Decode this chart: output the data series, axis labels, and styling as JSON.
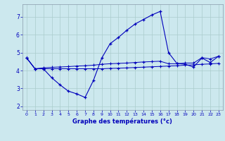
{
  "xlabel": "Graphe des températures (°c)",
  "xlim": [
    -0.5,
    23.5
  ],
  "ylim": [
    1.8,
    7.7
  ],
  "yticks": [
    2,
    3,
    4,
    5,
    6,
    7
  ],
  "xticks": [
    0,
    1,
    2,
    3,
    4,
    5,
    6,
    7,
    8,
    9,
    10,
    11,
    12,
    13,
    14,
    15,
    16,
    17,
    18,
    19,
    20,
    21,
    22,
    23
  ],
  "background_color": "#cce8ee",
  "grid_color": "#aacccc",
  "line_color": "#0000bb",
  "hours": [
    0,
    1,
    2,
    3,
    4,
    5,
    6,
    7,
    8,
    9,
    10,
    11,
    12,
    13,
    14,
    15,
    16,
    17,
    18,
    19,
    20,
    21,
    22,
    23
  ],
  "temp_main": [
    4.7,
    4.1,
    4.1,
    3.6,
    3.2,
    2.85,
    2.7,
    2.5,
    3.45,
    4.7,
    5.5,
    5.85,
    6.25,
    6.6,
    6.85,
    7.1,
    7.3,
    5.0,
    4.4,
    4.35,
    4.2,
    4.7,
    4.45,
    4.8
  ],
  "temp_upper": [
    4.7,
    4.1,
    4.15,
    4.18,
    4.2,
    4.22,
    4.25,
    4.27,
    4.3,
    4.35,
    4.38,
    4.4,
    4.42,
    4.45,
    4.48,
    4.5,
    4.52,
    4.38,
    4.38,
    4.42,
    4.42,
    4.72,
    4.65,
    4.8
  ],
  "temp_lower": [
    4.7,
    4.1,
    4.1,
    4.1,
    4.1,
    4.1,
    4.1,
    4.1,
    4.1,
    4.1,
    4.12,
    4.13,
    4.15,
    4.17,
    4.19,
    4.21,
    4.23,
    4.25,
    4.27,
    4.3,
    4.32,
    4.35,
    4.37,
    4.4
  ]
}
